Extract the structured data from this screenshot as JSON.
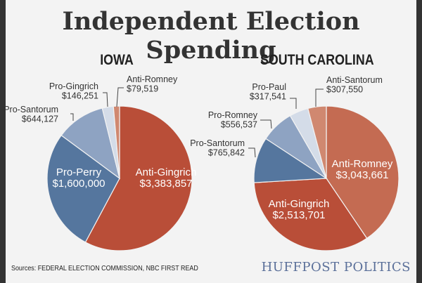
{
  "title": "Independent Election Spending",
  "sources": "Sources: FEDERAL ELECTION COMMISSION, NBC FIRST READ",
  "logo": "HUFFPOST POLITICS",
  "chart_data": [
    {
      "type": "pie",
      "title": "IOWA",
      "slices": [
        {
          "label": "Anti-Gingrich",
          "value": 3383857,
          "display": "$3,383,857",
          "color": "#b94e38"
        },
        {
          "label": "Pro-Perry",
          "value": 1600000,
          "display": "$1,600,000",
          "color": "#55769e"
        },
        {
          "label": "Pro-Santorum",
          "value": 644127,
          "display": "$644,127",
          "color": "#8ea3c2"
        },
        {
          "label": "Pro-Gingrich",
          "value": 146251,
          "display": "$146,251",
          "color": "#d4dce8"
        },
        {
          "label": "Anti-Romney",
          "value": 79519,
          "display": "$79,519",
          "color": "#d08870"
        }
      ]
    },
    {
      "type": "pie",
      "title": "SOUTH CAROLINA",
      "slices": [
        {
          "label": "Anti-Romney",
          "value": 3043661,
          "display": "$3,043,661",
          "color": "#c46b52"
        },
        {
          "label": "Anti-Gingrich",
          "value": 2513701,
          "display": "$2,513,701",
          "color": "#b94e38"
        },
        {
          "label": "Pro-Santorum",
          "value": 765842,
          "display": "$765,842",
          "color": "#55769e"
        },
        {
          "label": "Pro-Romney",
          "value": 556537,
          "display": "$556,537",
          "color": "#8ea3c2"
        },
        {
          "label": "Pro-Paul",
          "value": 317541,
          "display": "$317,541",
          "color": "#d4dce8"
        },
        {
          "label": "Anti-Santorum",
          "value": 307550,
          "display": "$307,550",
          "color": "#d08870"
        }
      ]
    }
  ]
}
